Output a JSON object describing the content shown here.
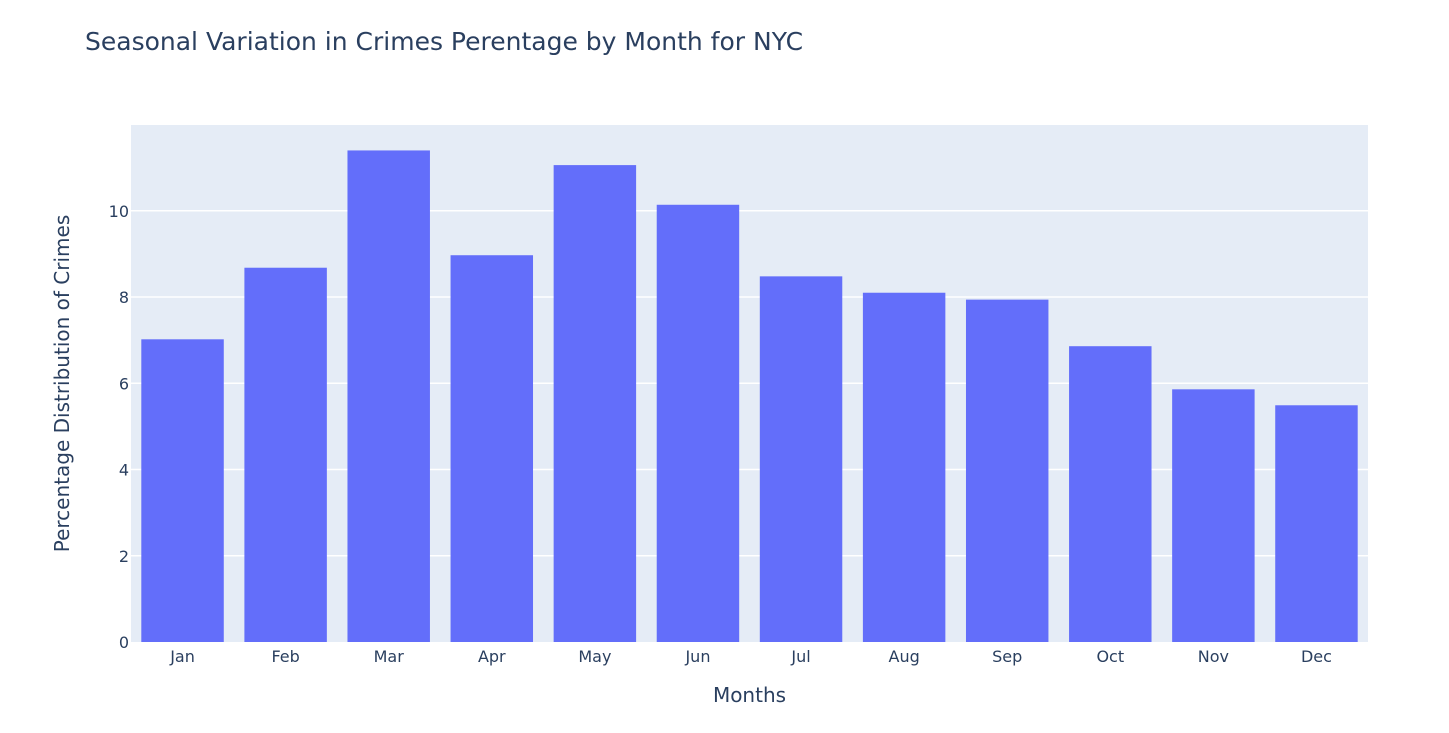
{
  "chart_data": {
    "type": "bar",
    "title": "Seasonal Variation in Crimes Perentage by Month for NYC",
    "xlabel": "Months",
    "ylabel": "Percentage Distribution of Crimes",
    "categories": [
      "Jan",
      "Feb",
      "Mar",
      "Apr",
      "May",
      "Jun",
      "Jul",
      "Aug",
      "Sep",
      "Oct",
      "Nov",
      "Dec"
    ],
    "values": [
      7.02,
      8.68,
      11.4,
      8.97,
      11.06,
      10.14,
      8.48,
      8.1,
      7.94,
      6.86,
      5.86,
      5.49
    ],
    "ylim": [
      0,
      11.99
    ],
    "yticks": [
      0,
      2,
      4,
      6,
      8,
      10
    ],
    "grid": true,
    "legend": "none",
    "colors": {
      "bar": "#636efa",
      "plot_bg": "#e5ecf6",
      "grid": "#ffffff",
      "text": "#2a3f5f"
    }
  }
}
